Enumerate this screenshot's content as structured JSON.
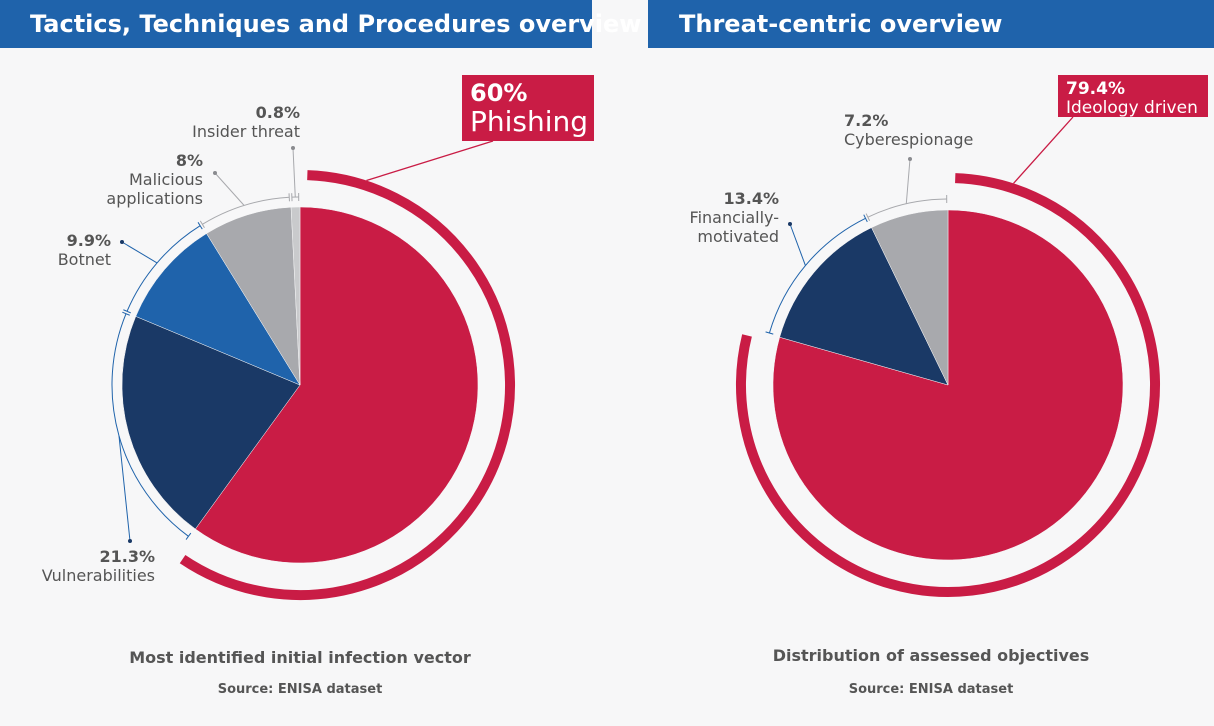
{
  "left": {
    "header": "Tactics, Techniques and Procedures overview",
    "caption": "Most identified initial infection vector",
    "source": "Source: ENISA dataset"
  },
  "right": {
    "header": "Threat-centric overview",
    "caption": "Distribution of assessed objectives",
    "source": "Source: ENISA dataset"
  },
  "chart_data": [
    {
      "type": "pie",
      "title": "Most identified initial infection vector",
      "unit": "%",
      "slices": [
        {
          "label": "Phishing",
          "value": 60,
          "value_label": "60%",
          "color": "#c91c45",
          "highlight": true
        },
        {
          "label": "Vulnerabilities",
          "value": 21.3,
          "value_label": "21.3%",
          "color": "#1a3966"
        },
        {
          "label": "Botnet",
          "value": 9.9,
          "value_label": "9.9%",
          "color": "#1f63ab"
        },
        {
          "label": "Malicious applications",
          "label_lines": [
            "Malicious",
            "applications"
          ],
          "value": 8,
          "value_label": "8%",
          "color": "#a8a9ad"
        },
        {
          "label": "Insider threat",
          "value": 0.8,
          "value_label": "0.8%",
          "color": "#c9cacc"
        }
      ]
    },
    {
      "type": "pie",
      "title": "Distribution of assessed objectives",
      "unit": "%",
      "slices": [
        {
          "label": "Ideology driven",
          "value": 79.4,
          "value_label": "79.4%",
          "color": "#c91c45",
          "highlight": true
        },
        {
          "label": "Financially-motivated",
          "label_lines": [
            "Financially-",
            "motivated"
          ],
          "value": 13.4,
          "value_label": "13.4%",
          "color": "#1a3966"
        },
        {
          "label": "Cyberespionage",
          "value": 7.2,
          "value_label": "7.2%",
          "color": "#a8a9ad"
        }
      ]
    }
  ]
}
